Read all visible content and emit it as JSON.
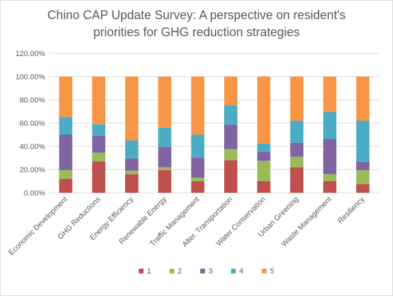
{
  "chart_data": {
    "type": "bar",
    "stacked": true,
    "title_lines": [
      "Chino CAP Update Survey: A perspective on resident's",
      "priorities for GHG reduction strategies"
    ],
    "categories": [
      "Economic Development",
      "GHG Reductions",
      "Energy Efficiency",
      "Renewable Energy",
      "Traffic Management",
      "Alter. Transportation",
      "Water Conservation",
      "Urban Greening",
      "Waste Management",
      "Resiliency"
    ],
    "series": [
      {
        "name": "1",
        "color": "#c0504d",
        "values": [
          12,
          27,
          16,
          19.5,
          10,
          28,
          10,
          22,
          10,
          7.5
        ]
      },
      {
        "name": "2",
        "color": "#9bbb59",
        "values": [
          7.5,
          7.5,
          3,
          2.5,
          3,
          9.5,
          17.5,
          9,
          6,
          12
        ]
      },
      {
        "name": "3",
        "color": "#8064a2",
        "values": [
          30.5,
          14.5,
          10.5,
          17.5,
          17,
          21,
          7.5,
          12,
          30.5,
          7
        ]
      },
      {
        "name": "4",
        "color": "#4bacc6",
        "values": [
          15,
          10,
          15.5,
          16.5,
          20,
          16.5,
          7.5,
          19,
          23,
          35.5
        ]
      },
      {
        "name": "5",
        "color": "#f79646",
        "values": [
          35,
          41,
          55,
          44,
          50,
          25,
          57.5,
          38,
          30.5,
          38
        ]
      }
    ],
    "y_ticks": [
      "0.00%",
      "20.00%",
      "40.00%",
      "60.00%",
      "80.00%",
      "100.00%",
      "120.00%"
    ],
    "ylim": [
      0,
      120
    ],
    "grid": true,
    "legend_position": "bottom"
  }
}
